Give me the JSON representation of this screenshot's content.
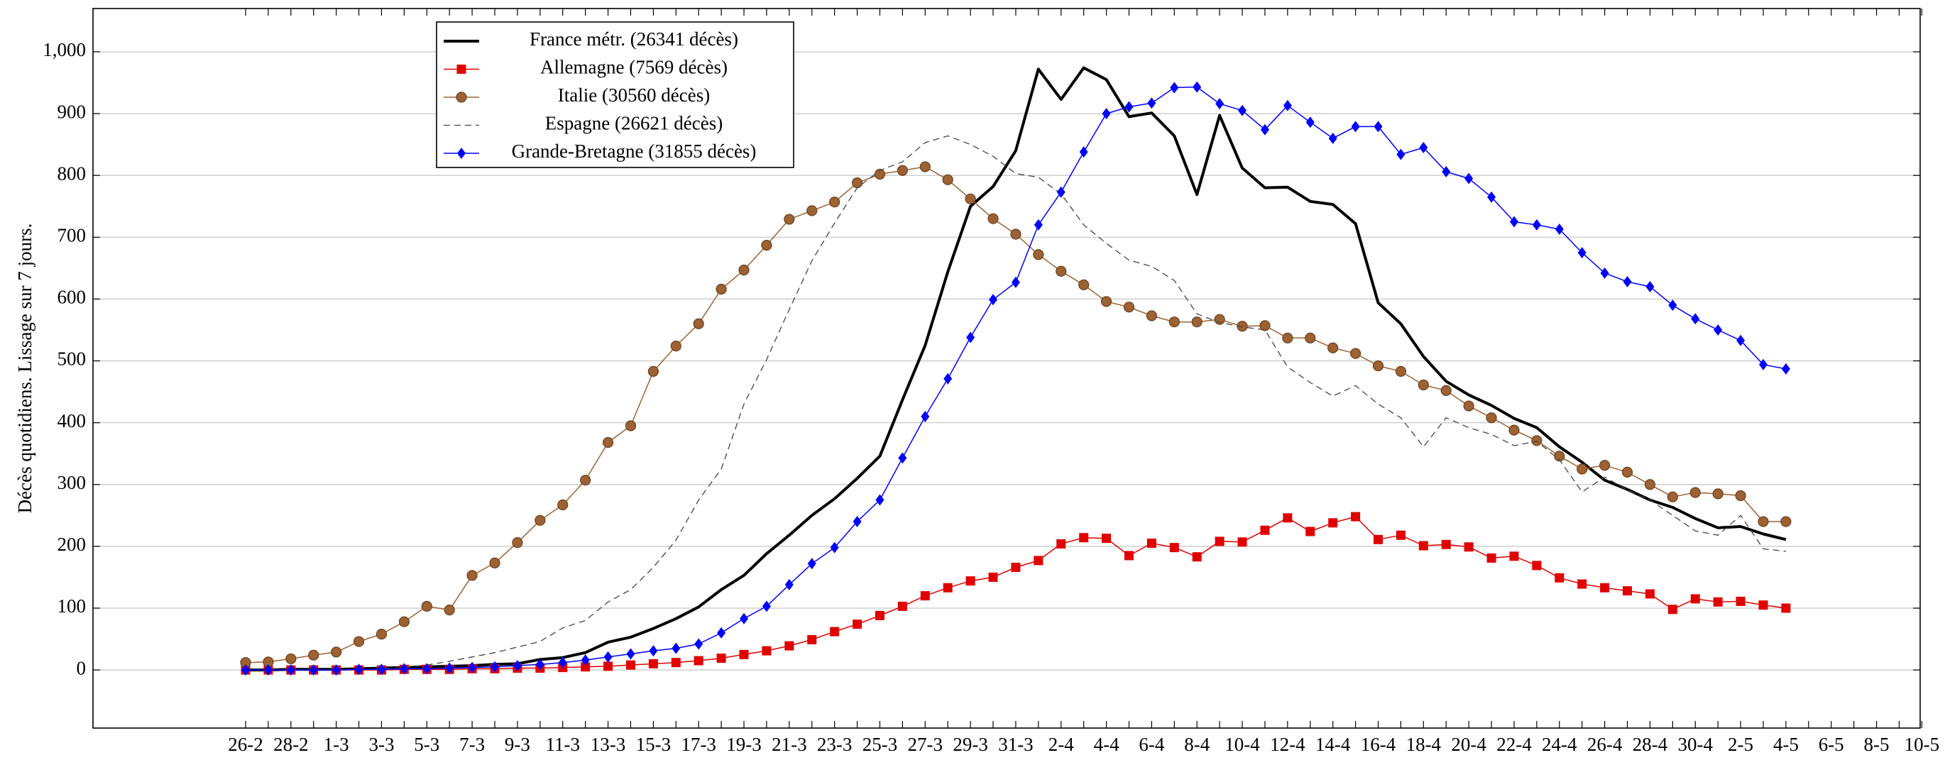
{
  "chart_data": {
    "type": "line",
    "y_label": "Décès quotidiens. Lissage sur 7 jours.",
    "categories": [
      "26-2",
      null,
      "28-2",
      null,
      "1-3",
      null,
      "3-3",
      null,
      "5-3",
      null,
      "7-3",
      null,
      "9-3",
      null,
      "11-3",
      null,
      "13-3",
      null,
      "15-3",
      null,
      "17-3",
      null,
      "19-3",
      null,
      "21-3",
      null,
      "23-3",
      null,
      "25-3",
      null,
      "27-3",
      null,
      "29-3",
      null,
      "31-3",
      null,
      "2-4",
      null,
      "4-4",
      null,
      "6-4",
      null,
      "8-4",
      null,
      "10-4",
      null,
      "12-4",
      null,
      "14-4",
      null,
      "16-4",
      null,
      "18-4",
      null,
      "20-4",
      null,
      "22-4",
      null,
      "24-4",
      null,
      "26-4",
      null,
      "28-4",
      null,
      "30-4",
      null,
      "2-5",
      null,
      "4-5",
      null,
      "6-5",
      null,
      "8-5",
      null,
      "10-5"
    ],
    "ylim": [
      -94,
      1070
    ],
    "yticks": [
      0,
      100,
      200,
      300,
      400,
      500,
      600,
      700,
      800,
      900,
      {
        "value": 1000,
        "label": "1,000"
      }
    ],
    "grid": true,
    "series": [
      {
        "name": "France métr. (26341 décès)",
        "color": "#000000",
        "width": 4,
        "marker": "none",
        "dash": "solid",
        "values": [
          0,
          0,
          1,
          1,
          1,
          2,
          3,
          4,
          5,
          6,
          7,
          9,
          10,
          17,
          20,
          28,
          45,
          53,
          67,
          83,
          102,
          130,
          153,
          188,
          218,
          250,
          277,
          310,
          346,
          437,
          525,
          644,
          750,
          782,
          840,
          972,
          923,
          974,
          955,
          895,
          901,
          864,
          769,
          897,
          812,
          780,
          781,
          758,
          753,
          722,
          594,
          560,
          507,
          467,
          445,
          428,
          407,
          392,
          361,
          336,
          307,
          292,
          275,
          263,
          245,
          230,
          232,
          220,
          211,
          null,
          null,
          null,
          null,
          null,
          null
        ]
      },
      {
        "name": "Allemagne (7569 décès)",
        "color": "#e00000",
        "width": 1.5,
        "marker": "square",
        "dash": "solid",
        "values": [
          0,
          0,
          0,
          0,
          0,
          0,
          0,
          1,
          1,
          1,
          2,
          2,
          3,
          3,
          4,
          5,
          6,
          8,
          10,
          12,
          15,
          19,
          25,
          31,
          39,
          49,
          62,
          74,
          88,
          103,
          120,
          133,
          144,
          150,
          166,
          177,
          204,
          214,
          213,
          185,
          205,
          198,
          183,
          208,
          207,
          226,
          246,
          224,
          238,
          248,
          211,
          218,
          201,
          203,
          199,
          181,
          184,
          169,
          149,
          139,
          133,
          128,
          123,
          98,
          115,
          110,
          111,
          105,
          100,
          null,
          null,
          null,
          null,
          null,
          null
        ]
      },
      {
        "name": "Italie (30560 décès)",
        "color": "#9c6233",
        "width": 1.5,
        "marker": "circle",
        "dash": "solid",
        "values": [
          12,
          13,
          18,
          24,
          29,
          46,
          58,
          78,
          103,
          97,
          153,
          173,
          206,
          242,
          267,
          307,
          368,
          395,
          483,
          524,
          560,
          616,
          647,
          687,
          729,
          743,
          757,
          788,
          802,
          808,
          814,
          793,
          762,
          730,
          705,
          672,
          645,
          623,
          596,
          587,
          573,
          563,
          563,
          567,
          556,
          557,
          537,
          537,
          521,
          512,
          492,
          483,
          461,
          452,
          427,
          408,
          388,
          371,
          346,
          325,
          331,
          320,
          300,
          280,
          287,
          285,
          282,
          240,
          240,
          null,
          null,
          null,
          null,
          null,
          null
        ]
      },
      {
        "name": "Espagne (26621 décès)",
        "color": "#444444",
        "width": 1.3,
        "marker": "none",
        "dash": "dashed",
        "values": [
          0,
          0,
          0,
          0,
          0,
          1,
          2,
          4,
          8,
          14,
          21,
          28,
          37,
          46,
          68,
          80,
          110,
          130,
          166,
          210,
          275,
          325,
          430,
          502,
          583,
          662,
          723,
          780,
          808,
          822,
          853,
          864,
          850,
          831,
          803,
          797,
          770,
          720,
          690,
          663,
          653,
          630,
          576,
          562,
          555,
          550,
          490,
          465,
          443,
          460,
          430,
          408,
          361,
          408,
          392,
          381,
          363,
          370,
          340,
          288,
          312,
          291,
          275,
          250,
          225,
          218,
          250,
          196,
          192,
          null,
          null,
          null,
          null,
          null,
          null
        ]
      },
      {
        "name": "Grande-Bretagne (31855 décès)",
        "color": "#0000ff",
        "width": 1.5,
        "marker": "diamond",
        "dash": "solid",
        "values": [
          0,
          0,
          0,
          0,
          0,
          1,
          1,
          2,
          2,
          3,
          4,
          5,
          7,
          9,
          12,
          16,
          21,
          26,
          31,
          35,
          42,
          60,
          83,
          103,
          138,
          172,
          198,
          240,
          275,
          343,
          410,
          471,
          538,
          599,
          627,
          720,
          773,
          838,
          900,
          911,
          917,
          942,
          943,
          916,
          905,
          874,
          913,
          886,
          860,
          879,
          879,
          834,
          845,
          806,
          795,
          765,
          725,
          720,
          713,
          675,
          642,
          628,
          620,
          590,
          568,
          550,
          533,
          494,
          487,
          null,
          null,
          null,
          null,
          null,
          null
        ]
      }
    ]
  }
}
